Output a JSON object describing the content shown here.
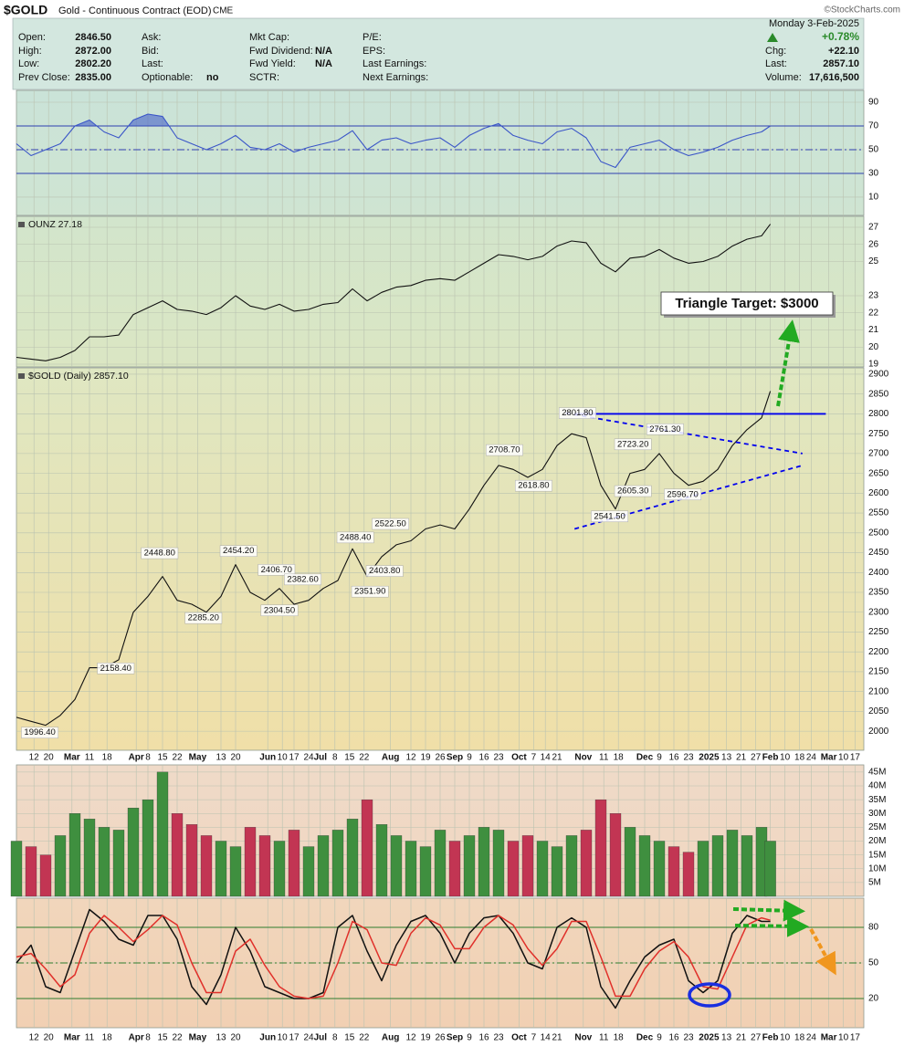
{
  "header": {
    "ticker": "$GOLD",
    "name": "Gold - Continuous Contract (EOD)",
    "exchange": "CME",
    "copyright": "©StockCharts.com",
    "date": "Monday  3-Feb-2025",
    "columns": [
      [
        {
          "label": "Open:",
          "value": "2846.50"
        },
        {
          "label": "High:",
          "value": "2872.00"
        },
        {
          "label": "Low:",
          "value": "2802.20"
        },
        {
          "label": "Prev Close:",
          "value": "2835.00"
        }
      ],
      [
        {
          "label": "Ask:"
        },
        {
          "label": "Bid:"
        },
        {
          "label": "Last:"
        },
        {
          "label": "Optionable:",
          "value": "no"
        }
      ],
      [
        {
          "label": "Mkt Cap:"
        },
        {
          "label": "Fwd Dividend:",
          "value": "N/A"
        },
        {
          "label": "Fwd Yield:",
          "value": "N/A"
        },
        {
          "label": "SCTR:"
        }
      ],
      [
        {
          "label": "P/E:"
        },
        {
          "label": "EPS:"
        },
        {
          "label": "Last Earnings:"
        },
        {
          "label": "Next Earnings:"
        }
      ]
    ],
    "change_pct": "+0.78%",
    "summary": [
      {
        "label": "Chg:",
        "value": "+22.10"
      },
      {
        "label": "Last:",
        "value": "2857.10"
      },
      {
        "label": "Volume:",
        "value": "17,616,500"
      }
    ]
  },
  "chart_data": [
    {
      "type": "line",
      "x": [
        0,
        5,
        10,
        15,
        20,
        25,
        30,
        35,
        40,
        45,
        50,
        55,
        60,
        65,
        70,
        75,
        80,
        85,
        90,
        95,
        100,
        105,
        110,
        115,
        120,
        125,
        130,
        135,
        140,
        145,
        150,
        155,
        160,
        165,
        170,
        175,
        180,
        185,
        190,
        195,
        200,
        205,
        210,
        215,
        220,
        225,
        230,
        235,
        240,
        245,
        250,
        255,
        258
      ],
      "series": [
        {
          "color": "#3a55c8",
          "values": [
            55,
            45,
            50,
            55,
            70,
            75,
            65,
            60,
            75,
            80,
            78,
            60,
            55,
            50,
            55,
            62,
            52,
            50,
            55,
            48,
            52,
            55,
            58,
            66,
            50,
            58,
            60,
            55,
            58,
            60,
            52,
            62,
            68,
            72,
            62,
            58,
            55,
            65,
            68,
            60,
            40,
            35,
            52,
            55,
            58,
            50,
            45,
            48,
            52,
            58,
            62,
            65,
            70
          ]
        }
      ],
      "ylim": [
        -5.4,
        100
      ],
      "yticks": [
        10,
        30,
        50,
        70,
        90
      ],
      "grid": true,
      "hlines": [
        {
          "value": 70,
          "style": "solid",
          "color": "#2f3fb0",
          "fill": "above"
        },
        {
          "value": 50,
          "style": "dashdot",
          "color": "#2f3fb0"
        },
        {
          "value": 30,
          "style": "solid",
          "color": "#2f3fb0",
          "fill": "below"
        }
      ]
    },
    {
      "type": "line",
      "label": "OUNZ 27.18",
      "x": [
        0,
        5,
        10,
        15,
        20,
        25,
        30,
        35,
        40,
        45,
        50,
        55,
        60,
        65,
        70,
        75,
        80,
        85,
        90,
        95,
        100,
        105,
        110,
        115,
        120,
        125,
        130,
        135,
        140,
        145,
        150,
        155,
        160,
        165,
        170,
        175,
        180,
        185,
        190,
        195,
        200,
        205,
        210,
        215,
        220,
        225,
        230,
        235,
        240,
        245,
        250,
        255,
        258
      ],
      "series": [
        {
          "color": "#111111",
          "values": [
            19.4,
            19.3,
            19.2,
            19.4,
            19.8,
            20.6,
            20.6,
            20.7,
            21.9,
            22.3,
            22.7,
            22.2,
            22.1,
            21.9,
            22.3,
            23.0,
            22.4,
            22.2,
            22.5,
            22.1,
            22.2,
            22.5,
            22.6,
            23.4,
            22.7,
            23.2,
            23.5,
            23.6,
            23.9,
            24.0,
            23.9,
            24.4,
            24.9,
            25.4,
            25.3,
            25.1,
            25.3,
            25.9,
            26.2,
            26.1,
            24.9,
            24.4,
            25.2,
            25.3,
            25.7,
            25.2,
            24.9,
            25.0,
            25.3,
            25.9,
            26.3,
            26.5,
            27.18
          ]
        }
      ],
      "ylim": [
        18.84,
        27.64
      ],
      "yticks": [
        19,
        20,
        21,
        22,
        23,
        25,
        26,
        27
      ],
      "grid": true
    },
    {
      "type": "line",
      "label": "$GOLD (Daily) 2857.10",
      "note": "Triangle Target: $3000",
      "x": [
        0,
        5,
        10,
        15,
        20,
        25,
        30,
        35,
        40,
        45,
        50,
        55,
        60,
        65,
        70,
        75,
        80,
        85,
        90,
        95,
        100,
        105,
        110,
        115,
        120,
        125,
        130,
        135,
        140,
        145,
        150,
        155,
        160,
        165,
        170,
        175,
        180,
        185,
        190,
        195,
        200,
        205,
        210,
        215,
        220,
        225,
        230,
        235,
        240,
        245,
        250,
        255,
        258
      ],
      "series": [
        {
          "color": "#111111",
          "values": [
            2035,
            2025,
            2015,
            2040,
            2080,
            2160,
            2160,
            2180,
            2300,
            2340,
            2390,
            2330,
            2320,
            2300,
            2340,
            2420,
            2350,
            2330,
            2360,
            2320,
            2330,
            2360,
            2380,
            2460,
            2390,
            2440,
            2470,
            2480,
            2510,
            2520,
            2510,
            2560,
            2620,
            2670,
            2660,
            2640,
            2660,
            2720,
            2750,
            2740,
            2620,
            2560,
            2650,
            2660,
            2700,
            2650,
            2620,
            2630,
            2660,
            2720,
            2760,
            2790,
            2857.1
          ]
        }
      ],
      "xlim": [
        0,
        290
      ],
      "xticks": [
        {
          "value": 6,
          "label": "12"
        },
        {
          "value": 11,
          "label": "20"
        },
        {
          "value": 19,
          "label": "Mar"
        },
        {
          "value": 25,
          "label": "11"
        },
        {
          "value": 31,
          "label": "18"
        },
        {
          "value": 41,
          "label": "Apr"
        },
        {
          "value": 45,
          "label": "8"
        },
        {
          "value": 50,
          "label": "15"
        },
        {
          "value": 55,
          "label": "22"
        },
        {
          "value": 62,
          "label": "May"
        },
        {
          "value": 70,
          "label": "13"
        },
        {
          "value": 75,
          "label": "20"
        },
        {
          "value": 86,
          "label": "Jun"
        },
        {
          "value": 91,
          "label": "10"
        },
        {
          "value": 95,
          "label": "17"
        },
        {
          "value": 100,
          "label": "24"
        },
        {
          "value": 104,
          "label": "Jul"
        },
        {
          "value": 109,
          "label": "8"
        },
        {
          "value": 114,
          "label": "15"
        },
        {
          "value": 119,
          "label": "22"
        },
        {
          "value": 128,
          "label": "Aug"
        },
        {
          "value": 135,
          "label": "12"
        },
        {
          "value": 140,
          "label": "19"
        },
        {
          "value": 145,
          "label": "26"
        },
        {
          "value": 150,
          "label": "Sep"
        },
        {
          "value": 155,
          "label": "9"
        },
        {
          "value": 160,
          "label": "16"
        },
        {
          "value": 165,
          "label": "23"
        },
        {
          "value": 172,
          "label": "Oct"
        },
        {
          "value": 177,
          "label": "7"
        },
        {
          "value": 181,
          "label": "14"
        },
        {
          "value": 185,
          "label": "21"
        },
        {
          "value": 194,
          "label": "Nov"
        },
        {
          "value": 201,
          "label": "11"
        },
        {
          "value": 206,
          "label": "18"
        },
        {
          "value": 215,
          "label": "Dec"
        },
        {
          "value": 220,
          "label": "9"
        },
        {
          "value": 225,
          "label": "16"
        },
        {
          "value": 230,
          "label": "23"
        },
        {
          "value": 237,
          "label": "2025"
        },
        {
          "value": 243,
          "label": "13"
        },
        {
          "value": 248,
          "label": "21"
        },
        {
          "value": 253,
          "label": "27"
        },
        {
          "value": 258,
          "label": "Feb"
        },
        {
          "value": 263,
          "label": "10"
        },
        {
          "value": 268,
          "label": "18"
        },
        {
          "value": 272,
          "label": "24"
        },
        {
          "value": 278,
          "label": "Mar"
        },
        {
          "value": 283,
          "label": "10"
        },
        {
          "value": 287,
          "label": "17"
        }
      ],
      "ylim": [
        1952,
        2916
      ],
      "yticks": [
        2000,
        2050,
        2100,
        2150,
        2200,
        2250,
        2300,
        2350,
        2400,
        2450,
        2500,
        2550,
        2600,
        2650,
        2700,
        2750,
        2800,
        2850,
        2900
      ],
      "grid": true,
      "annotations": [
        {
          "x": 8,
          "value": 1996.4,
          "label": "1996.40"
        },
        {
          "x": 34,
          "value": 2158.4,
          "label": "2158.40"
        },
        {
          "x": 49,
          "value": 2448.8,
          "label": "2448.80"
        },
        {
          "x": 64,
          "value": 2285.2,
          "label": "2285.20"
        },
        {
          "x": 76,
          "value": 2454.2,
          "label": "2454.20"
        },
        {
          "x": 89,
          "value": 2406.7,
          "label": "2406.70"
        },
        {
          "x": 90,
          "value": 2304.5,
          "label": "2304.50"
        },
        {
          "x": 98,
          "value": 2382.6,
          "label": "2382.60"
        },
        {
          "x": 116,
          "value": 2488.4,
          "label": "2488.40"
        },
        {
          "x": 121,
          "value": 2351.9,
          "label": "2351.90"
        },
        {
          "x": 126,
          "value": 2403.8,
          "label": "2403.80"
        },
        {
          "x": 128,
          "value": 2522.5,
          "label": "2522.50"
        },
        {
          "x": 167,
          "value": 2708.7,
          "label": "2708.70"
        },
        {
          "x": 177,
          "value": 2618.8,
          "label": "2618.80"
        },
        {
          "x": 192,
          "value": 2801.8,
          "label": "2801.80"
        },
        {
          "x": 203,
          "value": 2541.5,
          "label": "2541.50"
        },
        {
          "x": 211,
          "value": 2605.3,
          "label": "2605.30"
        },
        {
          "x": 211,
          "value": 2723.2,
          "label": "2723.20"
        },
        {
          "x": 222,
          "value": 2761.3,
          "label": "2761.30"
        },
        {
          "x": 228,
          "value": 2596.7,
          "label": "2596.70"
        }
      ],
      "trendlines": [
        {
          "x": [
            191,
            277
          ],
          "y": [
            2800,
            2800
          ],
          "color": "#0000ee",
          "dashed": false
        },
        {
          "x": [
            188,
            269
          ],
          "y": [
            2801.8,
            2700
          ],
          "color": "#0000ee",
          "dashed": true
        },
        {
          "x": [
            191,
            269
          ],
          "y": [
            2510,
            2670
          ],
          "color": "#0000ee",
          "dashed": true
        }
      ]
    },
    {
      "type": "bar",
      "x": [
        0,
        5,
        10,
        15,
        20,
        25,
        30,
        35,
        40,
        45,
        50,
        55,
        60,
        65,
        70,
        75,
        80,
        85,
        90,
        95,
        100,
        105,
        110,
        115,
        120,
        125,
        130,
        135,
        140,
        145,
        150,
        155,
        160,
        165,
        170,
        175,
        180,
        185,
        190,
        195,
        200,
        205,
        210,
        215,
        220,
        225,
        230,
        235,
        240,
        245,
        250,
        255,
        258
      ],
      "colors": {
        "up": "#3f8f3f",
        "down": "#c23553"
      },
      "values": [
        20000000,
        18000000,
        15000000,
        22000000,
        30000000,
        28000000,
        25000000,
        24000000,
        32000000,
        35000000,
        45000000,
        30000000,
        26000000,
        22000000,
        20000000,
        18000000,
        25000000,
        22000000,
        20000000,
        24000000,
        18000000,
        22000000,
        24000000,
        28000000,
        35000000,
        26000000,
        22000000,
        20000000,
        18000000,
        24000000,
        20000000,
        22000000,
        25000000,
        24000000,
        20000000,
        22000000,
        20000000,
        18000000,
        22000000,
        24000000,
        35000000,
        30000000,
        25000000,
        22000000,
        20000000,
        18000000,
        16000000,
        20000000,
        22000000,
        24000000,
        22000000,
        25000000,
        20000000
      ],
      "ylim": [
        0,
        47600000
      ],
      "yticks": [
        {
          "value": 5000000,
          "label": "5M"
        },
        {
          "value": 10000000,
          "label": "10M"
        },
        {
          "value": 15000000,
          "label": "15M"
        },
        {
          "value": 20000000,
          "label": "20M"
        },
        {
          "value": 25000000,
          "label": "25M"
        },
        {
          "value": 30000000,
          "label": "30M"
        },
        {
          "value": 35000000,
          "label": "35M"
        },
        {
          "value": 40000000,
          "label": "40M"
        },
        {
          "value": 45000000,
          "label": "45M"
        }
      ],
      "grid": true
    },
    {
      "type": "line",
      "x": [
        0,
        5,
        10,
        15,
        20,
        25,
        30,
        35,
        40,
        45,
        50,
        55,
        60,
        65,
        70,
        75,
        80,
        85,
        90,
        95,
        100,
        105,
        110,
        115,
        120,
        125,
        130,
        135,
        140,
        145,
        150,
        155,
        160,
        165,
        170,
        175,
        180,
        185,
        190,
        195,
        200,
        205,
        210,
        215,
        220,
        225,
        230,
        235,
        240,
        245,
        250,
        255,
        258
      ],
      "series": [
        {
          "color": "#111111",
          "values": [
            50,
            65,
            30,
            25,
            60,
            95,
            85,
            70,
            65,
            90,
            90,
            70,
            30,
            15,
            40,
            80,
            60,
            30,
            25,
            20,
            20,
            25,
            80,
            90,
            60,
            35,
            65,
            85,
            90,
            75,
            50,
            75,
            88,
            90,
            75,
            50,
            45,
            80,
            88,
            80,
            30,
            12,
            35,
            55,
            65,
            70,
            35,
            25,
            35,
            75,
            90,
            85,
            85
          ]
        },
        {
          "color": "#e0302a",
          "values": [
            55,
            58,
            45,
            30,
            40,
            75,
            90,
            80,
            68,
            78,
            90,
            82,
            50,
            25,
            25,
            60,
            70,
            48,
            30,
            22,
            20,
            22,
            50,
            85,
            78,
            50,
            48,
            75,
            88,
            82,
            62,
            62,
            80,
            90,
            82,
            62,
            48,
            62,
            85,
            85,
            55,
            22,
            22,
            45,
            60,
            68,
            55,
            30,
            28,
            55,
            82,
            88,
            86
          ]
        }
      ],
      "ylim": [
        -4.6,
        104.6
      ],
      "yticks": [
        20,
        50,
        80
      ],
      "grid": true,
      "hlines": [
        {
          "value": 80,
          "style": "solid",
          "color": "#2e7d2e"
        },
        {
          "value": 50,
          "style": "dashdot",
          "color": "#2e7d2e"
        },
        {
          "value": 20,
          "style": "solid",
          "color": "#2e7d2e"
        }
      ]
    }
  ]
}
